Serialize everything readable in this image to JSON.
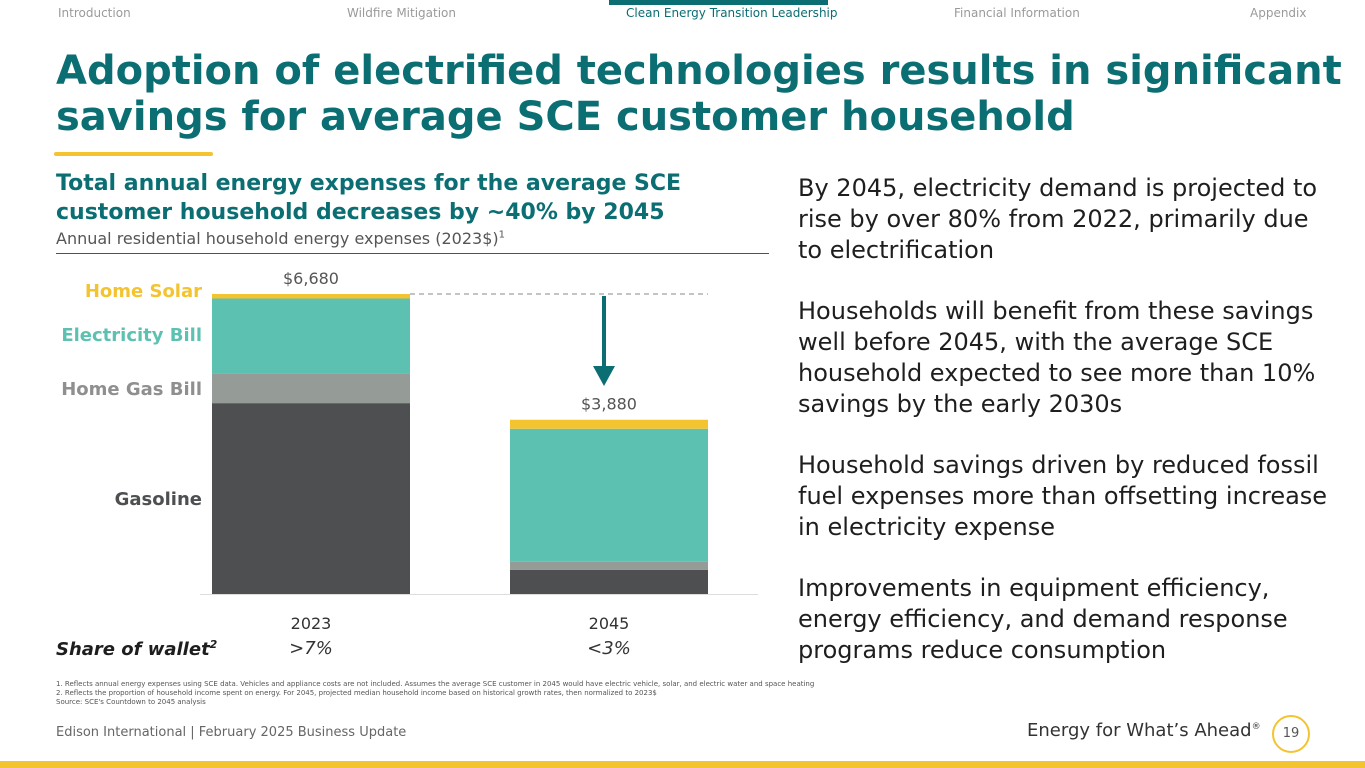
{
  "nav": {
    "items": [
      {
        "label": "Introduction",
        "active": false
      },
      {
        "label": "Wildfire Mitigation",
        "active": false
      },
      {
        "label": "Clean Energy Transition Leadership",
        "active": true
      },
      {
        "label": "Financial Information",
        "active": false
      },
      {
        "label": "Appendix",
        "active": false
      }
    ]
  },
  "title": "Adoption of electrified technologies results in significant savings for average SCE customer household",
  "chart_title": "Total annual energy expenses for the average SCE customer household decreases by ~40% by 2045",
  "chart_subtitle": "Annual residential household energy expenses (2023$)",
  "chart_subtitle_sup": "1",
  "share_of_wallet_label": "Share of wallet",
  "share_of_wallet_sup": "2",
  "chart_data": {
    "type": "bar",
    "stacked": true,
    "title": "Total annual energy expenses for the average SCE customer household decreases by ~40% by 2045",
    "ylabel": "Annual residential household energy expenses (2023$)",
    "categories": [
      "2023",
      "2045"
    ],
    "totals": [
      6680,
      3880
    ],
    "total_labels": [
      "$6,680",
      "$3,880"
    ],
    "share_of_wallet": [
      ">7%",
      "<3%"
    ],
    "series": [
      {
        "name": "Gasoline",
        "color": "#4d4f50",
        "values": [
          4250,
          540
        ]
      },
      {
        "name": "Home Gas Bill",
        "color": "#959c98",
        "values": [
          650,
          180
        ]
      },
      {
        "name": "Electricity Bill",
        "color": "#5dc1b2",
        "values": [
          1680,
          2960
        ]
      },
      {
        "name": "Home Solar",
        "color": "#f4c430",
        "values": [
          100,
          200
        ]
      }
    ],
    "ylim": [
      0,
      6680
    ],
    "annotation": "reference dashed line at 2023 total with downward arrow toward 2045",
    "colors": {
      "arrow": "#0a6e73",
      "dashed": "#b0b0b0"
    }
  },
  "bullets": [
    "By 2045, electricity demand is projected to rise by over 80% from 2022, primarily due to electrification",
    "Households will benefit from these savings well before 2045, with the average SCE household expected to see more than 10% savings by the early 2030s",
    "Household savings driven by reduced fossil fuel expenses more than offsetting increase in electricity expense",
    "Improvements in equipment efficiency, energy efficiency, and demand response programs reduce consumption"
  ],
  "footnotes": [
    "1.   Reflects annual energy expenses using SCE data. Vehicles and appliance costs are not included. Assumes the average SCE customer in 2045 would have electric vehicle, solar, and electric water and space heating",
    "2.   Reflects the proportion of household income spent on energy. For 2045, projected median household income based on historical growth rates, then normalized to 2023$",
    "Source: SCE's Countdown to 2045 analysis"
  ],
  "footer": {
    "left": "Edison International |  February 2025 Business Update",
    "tagline": "Energy for What’s Ahead",
    "tagline_mark": "®",
    "page_number": "19"
  },
  "colors": {
    "brand_teal": "#0a6e73",
    "accent_yellow": "#f4c430"
  }
}
